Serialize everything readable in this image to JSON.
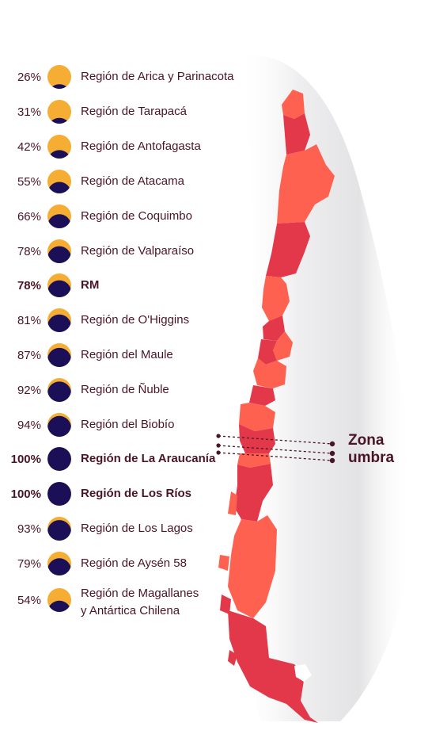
{
  "regions": [
    {
      "pct": "26%",
      "label": "Región de Arica y Parinacota",
      "bold": false,
      "value": 26
    },
    {
      "pct": "31%",
      "label": "Región de Tarapacá",
      "bold": false,
      "value": 31
    },
    {
      "pct": "42%",
      "label": "Región de Antofagasta",
      "bold": false,
      "value": 42
    },
    {
      "pct": "55%",
      "label": "Región de Atacama",
      "bold": false,
      "value": 55
    },
    {
      "pct": "66%",
      "label": "Región de Coquimbo",
      "bold": false,
      "value": 66
    },
    {
      "pct": "78%",
      "label": "Región de Valparaíso",
      "bold": false,
      "value": 78
    },
    {
      "pct": "78%",
      "label": "RM",
      "bold": true,
      "value": 78
    },
    {
      "pct": "81%",
      "label": "Región de O'Higgins",
      "bold": false,
      "value": 81
    },
    {
      "pct": "87%",
      "label": "Región del Maule",
      "bold": false,
      "value": 87
    },
    {
      "pct": "92%",
      "label": "Región de Ñuble",
      "bold": false,
      "value": 92
    },
    {
      "pct": "94%",
      "label": "Región del Biobío",
      "bold": false,
      "value": 94
    },
    {
      "pct": "100%",
      "label": "Región de La Araucanía",
      "bold": true,
      "value": 100
    },
    {
      "pct": "100%",
      "label": "Región de Los Ríos",
      "bold": true,
      "value": 100
    },
    {
      "pct": "93%",
      "label": "Región de Los Lagos",
      "bold": false,
      "value": 93
    },
    {
      "pct": "79%",
      "label": "Región de Aysén 58",
      "bold": false,
      "value": 79
    },
    {
      "pct": "54%",
      "label": "Región de Magallanes\ny Antártica Chilena",
      "bold": false,
      "value": 54
    }
  ],
  "zona": {
    "line1": "Zona",
    "line2": "umbra"
  },
  "colors": {
    "sun": "#f5ad33",
    "moon": "#1b0f57",
    "text": "#4a1428",
    "region_dark": "#e2384a",
    "region_light": "#ff6150",
    "shadow": "#e6e6e8"
  }
}
